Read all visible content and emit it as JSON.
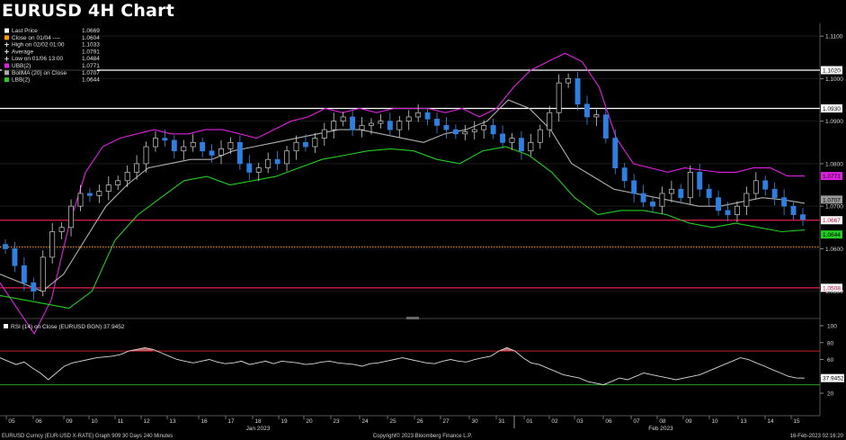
{
  "title": "EURUSD 4H Chart",
  "legend": [
    {
      "label": "Last Price",
      "value": "1.0669",
      "color": "#ffffff",
      "icon": "square-swatch"
    },
    {
      "label": "Close on 01/04 ----",
      "value": "1.0604",
      "color": "#ff9900",
      "icon": "square-swatch"
    },
    {
      "label": "High on 02/02 01:00",
      "value": "1.1033",
      "color": "#ffffff",
      "icon": "plus-marker"
    },
    {
      "label": "Average",
      "value": "1.0791",
      "color": "#ffffff",
      "icon": "plus-marker"
    },
    {
      "label": "Low on 01/06 13:00",
      "value": "1.0484",
      "color": "#ffffff",
      "icon": "plus-marker"
    },
    {
      "label": "UBB(2)",
      "value": "1.0771",
      "color": "#e020e0",
      "icon": "square-swatch"
    },
    {
      "label": "BollMA (20)  on Close",
      "value": "1.0707",
      "color": "#aaaaaa",
      "icon": "square-swatch"
    },
    {
      "label": "LBB(2)",
      "value": "1.0644",
      "color": "#22cc22",
      "icon": "square-swatch"
    }
  ],
  "rsi_legend": {
    "label": "RSI (14)  on Close (EURUSD BGN)",
    "value": "37.9452",
    "color": "#ffffff"
  },
  "price_axis": {
    "ticks": [
      "1.1100",
      "1.1000",
      "1.0900",
      "1.0800",
      "1.0700",
      "1.0600",
      "1.0500"
    ],
    "tags": [
      {
        "text": "1.1020",
        "bg": "#ffffff",
        "fg": "#000000"
      },
      {
        "text": "1.0930",
        "bg": "#ffffff",
        "fg": "#000000"
      },
      {
        "text": "1.0771",
        "bg": "#e020e0",
        "fg": "#000000"
      },
      {
        "text": "1.0707",
        "bg": "#999999",
        "fg": "#000000"
      },
      {
        "text": "1.0667",
        "bg": "#ffffff",
        "fg": "#c0003a"
      },
      {
        "text": "1.0644",
        "bg": "#22cc22",
        "fg": "#000000"
      },
      {
        "text": "1.0508",
        "bg": "#ffffff",
        "fg": "#c0003a"
      }
    ]
  },
  "rsi_axis": {
    "ticks": [
      "100",
      "80",
      "60",
      "40",
      "20"
    ],
    "tag": {
      "text": "37.9452",
      "bg": "#ffffff",
      "fg": "#000000"
    }
  },
  "x_axis": {
    "days": [
      "05",
      "06",
      "09",
      "10",
      "11",
      "12",
      "13",
      "16",
      "17",
      "18",
      "19",
      "20",
      "23",
      "24",
      "25",
      "26",
      "27",
      "30",
      "31",
      "01",
      "02",
      "03",
      "06",
      "07",
      "08",
      "09",
      "10",
      "13",
      "14",
      "15"
    ],
    "months": [
      "Jan 2023",
      "Feb 2023"
    ]
  },
  "footer": {
    "left": "EURUSD Curncy (EUR-USD X-RATE) Graph 909 30 Days 240 Minutes",
    "center": "Copyright© 2023 Bloomberg Finance L.P.",
    "right": "16-Feb-2023 02:16:20"
  },
  "chart_data": {
    "type": "line",
    "title": "EURUSD 4H Chart",
    "candles": "4-hour OHLC (approximate closes shown)",
    "closes": [
      1.06,
      1.056,
      1.052,
      1.05,
      1.058,
      1.064,
      1.065,
      1.07,
      1.073,
      1.0725,
      1.0735,
      1.075,
      1.076,
      1.078,
      1.08,
      1.084,
      1.086,
      1.0855,
      1.083,
      1.084,
      1.085,
      1.083,
      1.082,
      1.0835,
      1.085,
      1.08,
      1.078,
      1.079,
      1.081,
      1.08,
      1.083,
      1.085,
      1.084,
      1.086,
      1.088,
      1.09,
      1.091,
      1.088,
      1.089,
      1.0895,
      1.09,
      1.088,
      1.09,
      1.091,
      1.092,
      1.0905,
      1.089,
      1.088,
      1.087,
      1.0875,
      1.088,
      1.089,
      1.087,
      1.085,
      1.086,
      1.083,
      1.085,
      1.088,
      1.092,
      1.099,
      1.1,
      1.094,
      1.091,
      1.0915,
      1.086,
      1.079,
      1.076,
      1.073,
      1.071,
      1.07,
      1.073,
      1.074,
      1.072,
      1.078,
      1.074,
      1.072,
      1.069,
      1.068,
      1.07,
      1.073,
      1.076,
      1.074,
      1.072,
      1.07,
      1.068,
      1.0669
    ],
    "upper_band": [
      1.052,
      1.046,
      1.04,
      1.048,
      1.065,
      1.078,
      1.084,
      1.086,
      1.087,
      1.088,
      1.087,
      1.087,
      1.088,
      1.088,
      1.087,
      1.086,
      1.088,
      1.09,
      1.091,
      1.093,
      1.092,
      1.093,
      1.092,
      1.093,
      1.093,
      1.093,
      1.092,
      1.093,
      1.091,
      1.093,
      1.098,
      1.102,
      1.104,
      1.106,
      1.104,
      1.098,
      1.086,
      1.08,
      1.079,
      1.078,
      1.079,
      1.0785,
      1.078,
      1.078,
      1.079,
      1.079,
      1.0771,
      1.0771
    ],
    "middle_band": [
      1.054,
      1.052,
      1.05,
      1.054,
      1.062,
      1.07,
      1.075,
      1.079,
      1.08,
      1.081,
      1.081,
      1.083,
      1.084,
      1.085,
      1.086,
      1.087,
      1.088,
      1.088,
      1.087,
      1.086,
      1.085,
      1.087,
      1.088,
      1.09,
      1.095,
      1.093,
      1.088,
      1.08,
      1.077,
      1.074,
      1.073,
      1.072,
      1.071,
      1.07,
      1.07,
      1.071,
      1.072,
      1.0715,
      1.0707
    ],
    "lower_band": [
      1.049,
      1.048,
      1.047,
      1.046,
      1.05,
      1.062,
      1.068,
      1.072,
      1.076,
      1.077,
      1.075,
      1.076,
      1.077,
      1.079,
      1.081,
      1.082,
      1.083,
      1.0835,
      1.083,
      1.081,
      1.08,
      1.083,
      1.084,
      1.082,
      1.078,
      1.072,
      1.068,
      1.069,
      1.069,
      1.068,
      1.066,
      1.065,
      1.066,
      1.065,
      1.064,
      1.0644
    ],
    "horizontal_lines": [
      {
        "value": 1.102,
        "color": "#ffffff"
      },
      {
        "value": 1.093,
        "color": "#ffffff"
      },
      {
        "value": 1.0667,
        "color": "#e0204a"
      },
      {
        "value": 1.0604,
        "color": "#ff9900",
        "style": "dotted"
      },
      {
        "value": 1.0508,
        "color": "#e0204a"
      }
    ],
    "ylim": [
      1.044,
      1.113
    ],
    "rsi": {
      "ylim": [
        0,
        100
      ],
      "levels": [
        70,
        30
      ],
      "last": 37.9452,
      "values": [
        62,
        58,
        54,
        57,
        50,
        44,
        36,
        44,
        52,
        56,
        58,
        60,
        62,
        63,
        64,
        66,
        70,
        72,
        74,
        72,
        68,
        64,
        60,
        58,
        56,
        58,
        60,
        57,
        55,
        56,
        58,
        54,
        56,
        58,
        55,
        58,
        57,
        56,
        54,
        55,
        57,
        58,
        56,
        55,
        54,
        52,
        55,
        56,
        58,
        60,
        62,
        60,
        58,
        56,
        55,
        58,
        60,
        58,
        57,
        60,
        62,
        64,
        70,
        74,
        70,
        62,
        56,
        54,
        50,
        46,
        42,
        40,
        38,
        34,
        32,
        30,
        34,
        38,
        36,
        40,
        44,
        42,
        40,
        38,
        36,
        38,
        40,
        42,
        46,
        50,
        54,
        58,
        62,
        60,
        56,
        52,
        48,
        44,
        40,
        38,
        37.9
      ]
    }
  }
}
